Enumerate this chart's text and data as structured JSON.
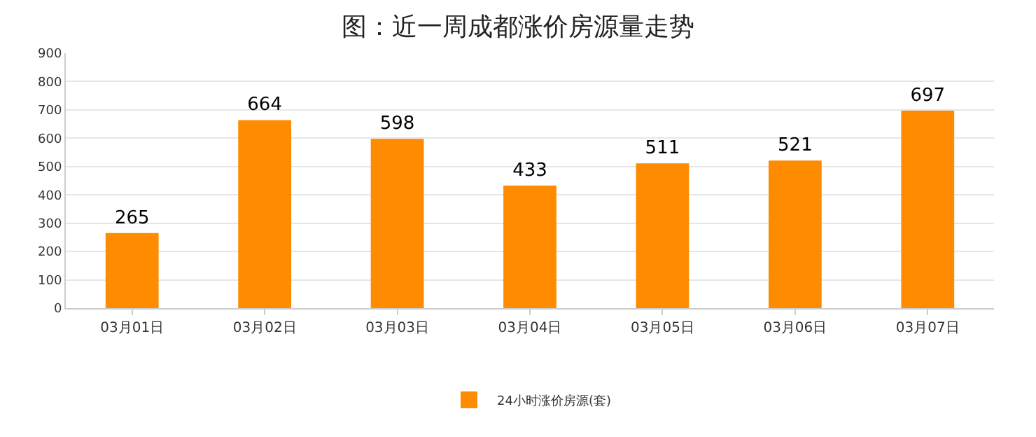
{
  "chart_data": {
    "type": "bar",
    "title": "图：近一周成都涨价房源量走势",
    "categories": [
      "03月01日",
      "03月02日",
      "03月03日",
      "03月04日",
      "03月05日",
      "03月06日",
      "03月07日"
    ],
    "series": [
      {
        "name": "24小时涨价房源(套)",
        "color": "#ff8c00",
        "values": [
          265,
          664,
          598,
          433,
          511,
          521,
          697
        ]
      }
    ],
    "ylim": [
      0,
      900
    ],
    "yticks": [
      0,
      100,
      200,
      300,
      400,
      500,
      600,
      700,
      800,
      900
    ],
    "grid": "y",
    "legend": "bottom",
    "data_labels": true
  }
}
